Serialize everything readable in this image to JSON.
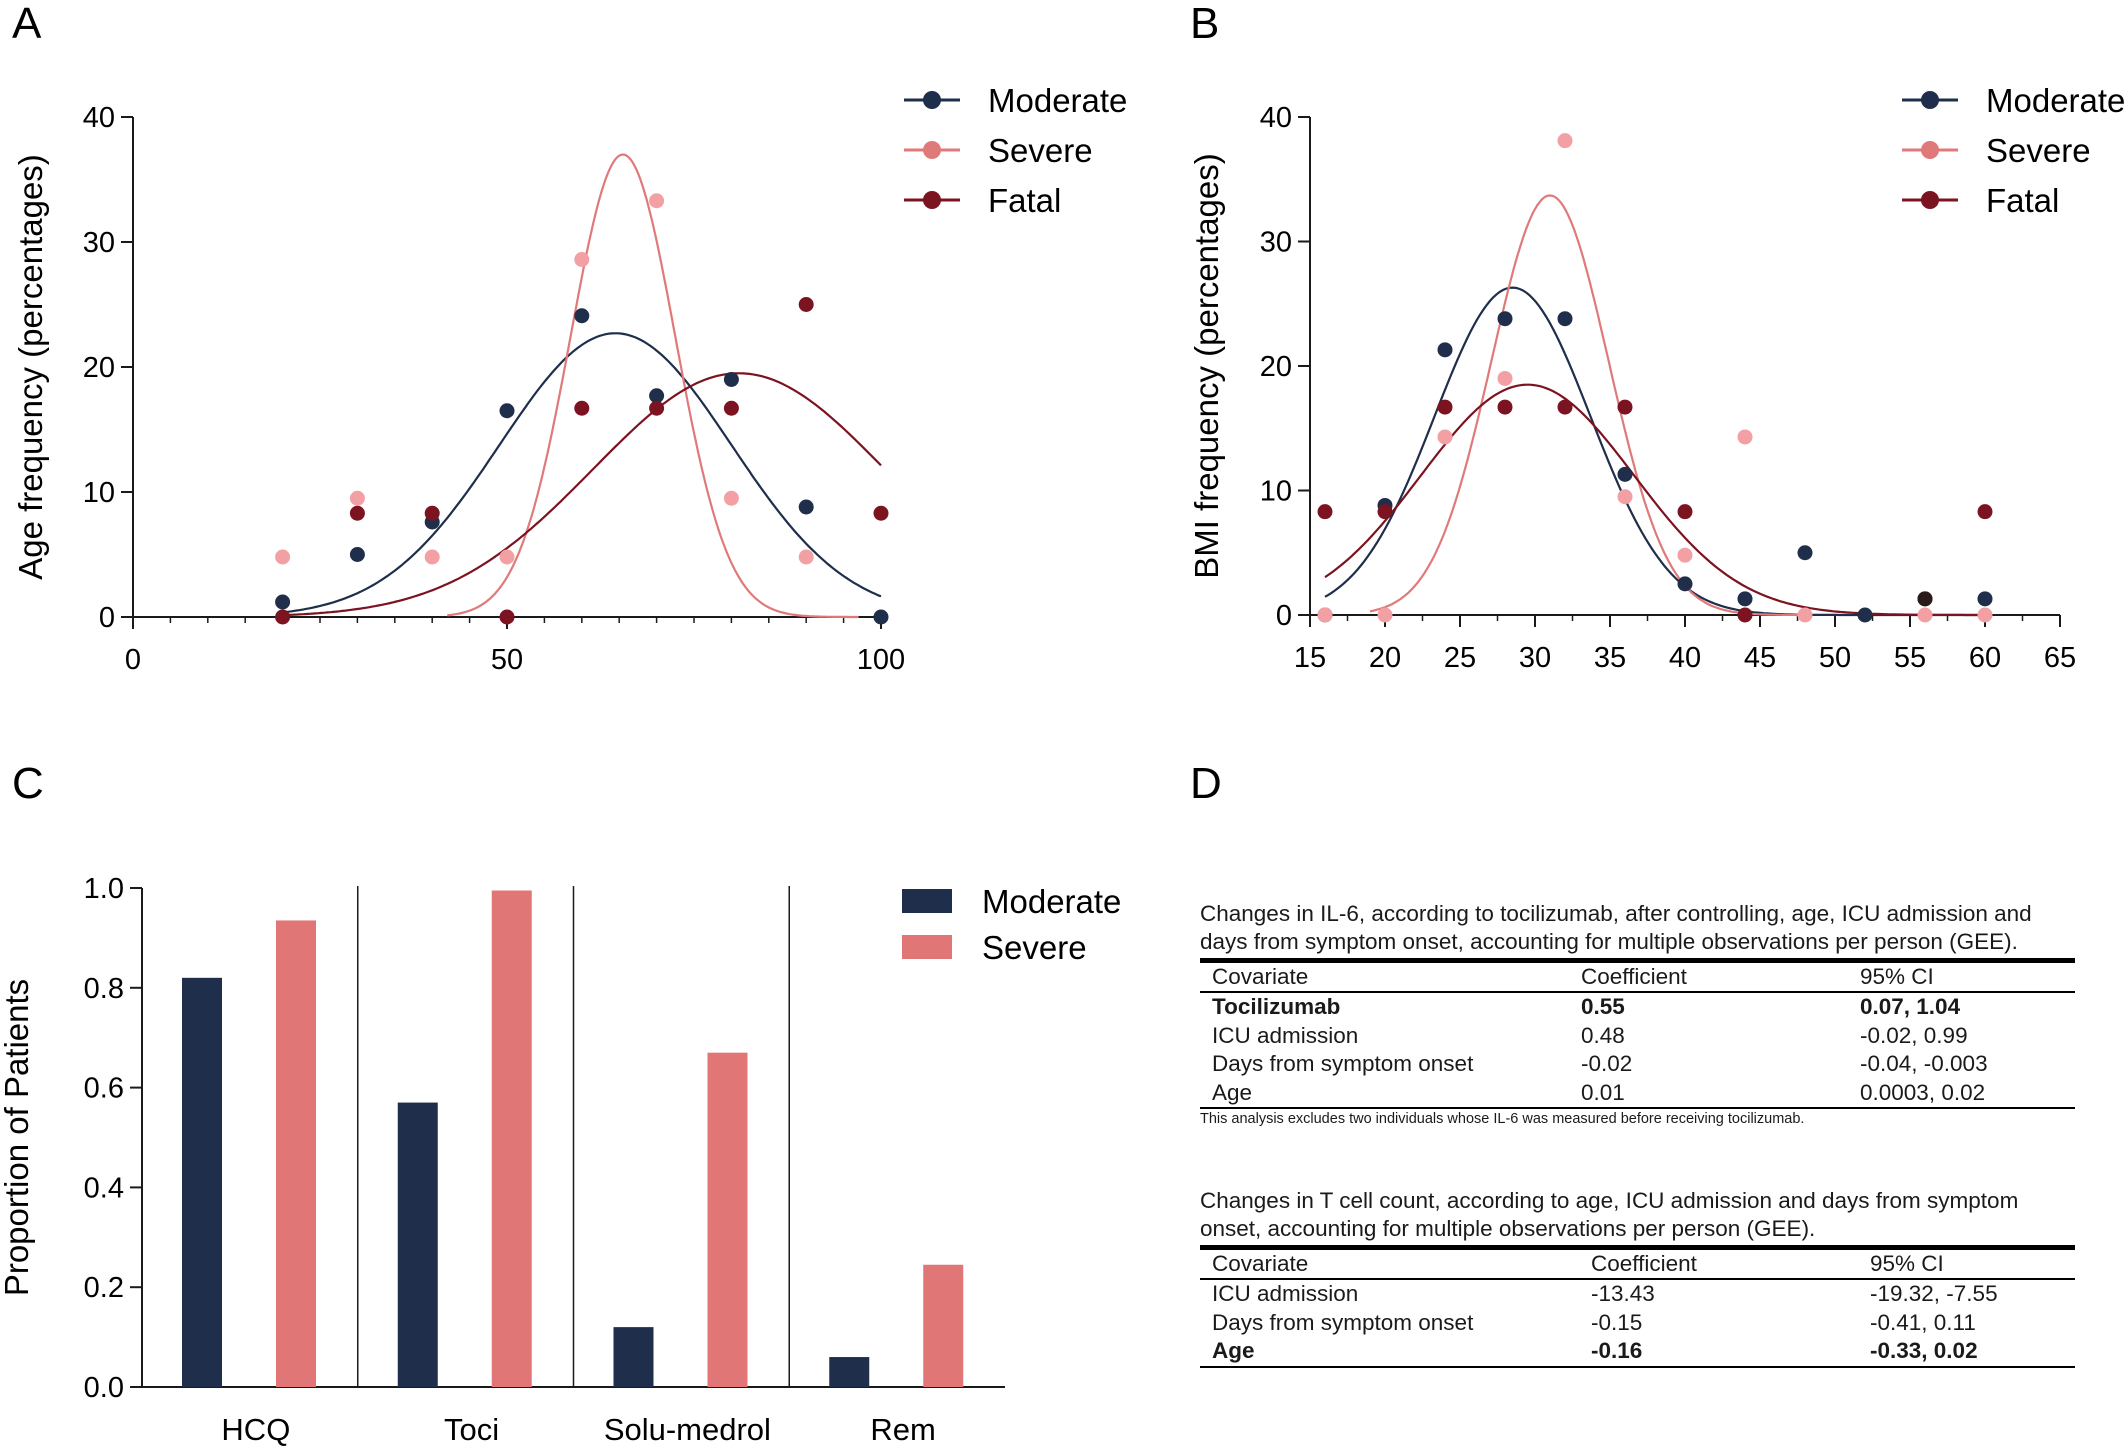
{
  "colors": {
    "moderate": "#1f2e4a",
    "severe_fit": "#e07a7a",
    "severe_point": "#f3a0a5",
    "fatal": "#7b1321",
    "severe_bar": "#e07676",
    "axis": "#1a1a1a"
  },
  "panels": {
    "A": "A",
    "B": "B",
    "C": "C",
    "D": "D"
  },
  "chart_data": [
    {
      "id": "A",
      "type": "scatter",
      "xlabel": "",
      "ylabel": "Age frequency (percentages)",
      "xlim": [
        0,
        100
      ],
      "ylim": [
        0,
        40
      ],
      "xticks": [
        "0",
        "50",
        "100"
      ],
      "yticks": [
        "0",
        "10",
        "20",
        "30",
        "40"
      ],
      "legend": [
        "Moderate",
        "Severe",
        "Fatal"
      ],
      "legend_position": "top-right",
      "series": [
        {
          "name": "Moderate",
          "x": [
            20,
            30,
            40,
            50,
            60,
            70,
            80,
            90,
            100
          ],
          "y": [
            1.2,
            5.0,
            7.6,
            16.5,
            24.1,
            17.7,
            19.0,
            8.8,
            0
          ],
          "fit": {
            "amp": 22.7,
            "mu": 64.5,
            "sigma": 15.5,
            "range": [
              20,
              100
            ]
          }
        },
        {
          "name": "Severe",
          "x": [
            20,
            30,
            40,
            50,
            60,
            70,
            80,
            90
          ],
          "y": [
            4.8,
            9.5,
            4.8,
            4.8,
            28.6,
            33.3,
            9.5,
            4.8
          ],
          "fit": {
            "amp": 37.0,
            "mu": 65.5,
            "sigma": 7.0,
            "range": [
              42,
              97
            ]
          }
        },
        {
          "name": "Fatal",
          "x": [
            20,
            30,
            40,
            50,
            60,
            70,
            80,
            90,
            100
          ],
          "y": [
            0,
            8.3,
            8.3,
            0,
            16.7,
            16.7,
            16.7,
            25.0,
            8.3
          ],
          "fit": {
            "amp": 19.5,
            "mu": 81.0,
            "sigma": 19.5,
            "range": [
              20,
              100
            ]
          }
        }
      ]
    },
    {
      "id": "B",
      "type": "scatter",
      "xlabel": "",
      "ylabel": "BMI frequency (percentages)",
      "xlim": [
        15,
        65
      ],
      "ylim": [
        0,
        40
      ],
      "xticks": [
        "15",
        "20",
        "25",
        "30",
        "35",
        "40",
        "45",
        "50",
        "55",
        "60",
        "65"
      ],
      "yticks": [
        "0",
        "10",
        "20",
        "30",
        "40"
      ],
      "legend": [
        "Moderate",
        "Severe",
        "Fatal"
      ],
      "legend_position": "top-right",
      "series": [
        {
          "name": "Moderate",
          "x": [
            16,
            20,
            24,
            28,
            32,
            36,
            40,
            44,
            48,
            52,
            56,
            60
          ],
          "y": [
            0,
            8.8,
            21.3,
            23.8,
            23.8,
            11.3,
            2.5,
            1.3,
            5.0,
            0,
            1.3,
            1.3
          ],
          "fit": {
            "amp": 26.3,
            "mu": 28.5,
            "sigma": 5.2,
            "range": [
              16,
              60
            ]
          }
        },
        {
          "name": "Severe",
          "x": [
            16,
            20,
            24,
            28,
            32,
            36,
            40,
            44,
            48,
            56,
            60
          ],
          "y": [
            0,
            0,
            14.3,
            19.0,
            38.1,
            9.5,
            4.8,
            14.3,
            0,
            0,
            0
          ],
          "fit": {
            "amp": 33.7,
            "mu": 31.0,
            "sigma": 3.9,
            "range": [
              19,
              48
            ]
          }
        },
        {
          "name": "Fatal",
          "x": [
            16,
            20,
            24,
            28,
            32,
            36,
            40,
            44,
            56,
            60
          ],
          "y": [
            8.3,
            8.3,
            16.7,
            16.7,
            16.7,
            16.7,
            8.3,
            0,
            1.3,
            8.3
          ],
          "fit": {
            "amp": 18.5,
            "mu": 29.5,
            "sigma": 7.1,
            "range": [
              16,
              60
            ]
          }
        }
      ]
    },
    {
      "id": "C",
      "type": "bar",
      "ylabel": "Proportion of Patients",
      "ylim": [
        0,
        1.0
      ],
      "yticks": [
        "0.0",
        "0.2",
        "0.4",
        "0.6",
        "0.8",
        "1.0"
      ],
      "categories": [
        "HCQ",
        "Toci",
        "Solu-medrol",
        "Rem"
      ],
      "legend": [
        "Moderate",
        "Severe"
      ],
      "legend_position": "top-right",
      "series": [
        {
          "name": "Moderate",
          "values": [
            0.82,
            0.57,
            0.12,
            0.06
          ]
        },
        {
          "name": "Severe",
          "values": [
            0.935,
            0.995,
            0.67,
            0.245
          ]
        }
      ]
    }
  ],
  "tables": [
    {
      "caption": "Changes in IL-6, according to tocilizumab, after controlling, age, ICU admission and days from symptom onset, accounting for multiple observations per person (GEE).",
      "headers": [
        "Covariate",
        "Coefficient",
        "95% CI"
      ],
      "rows": [
        [
          "Tocilizumab",
          "0.55",
          "0.07, 1.04"
        ],
        [
          "ICU admission",
          "0.48",
          "-0.02, 0.99"
        ],
        [
          "Days from symptom onset",
          "-0.02",
          "-0.04, -0.003"
        ],
        [
          "Age",
          "0.01",
          "0.0003, 0.02"
        ]
      ],
      "bold_rows": [
        0
      ],
      "note": "This analysis excludes two individuals whose IL-6 was measured before receiving tocilizumab."
    },
    {
      "caption": "Changes in T cell count, according to age, ICU admission and days from symptom onset, accounting for multiple observations per person (GEE).",
      "headers": [
        "Covariate",
        "Coefficient",
        "95% CI"
      ],
      "rows": [
        [
          "ICU admission",
          "-13.43",
          "-19.32, -7.55"
        ],
        [
          "Days from symptom onset",
          "-0.15",
          "-0.41, 0.11"
        ],
        [
          "Age",
          "-0.16",
          "-0.33, 0.02"
        ]
      ],
      "bold_rows": [
        2
      ],
      "note": ""
    }
  ]
}
